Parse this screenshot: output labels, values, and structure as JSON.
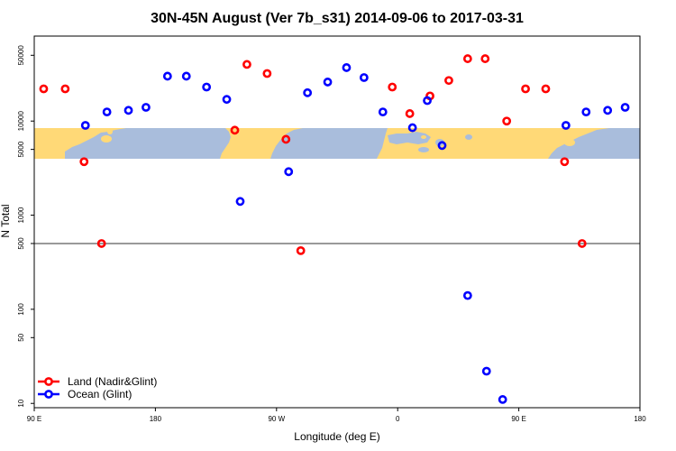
{
  "chart_data": {
    "type": "scatter",
    "title": "30N-45N August (Ver 7b_s31)   2014-09-06 to 2017-03-31",
    "xlabel": "Longitude (deg E)",
    "ylabel": "N Total",
    "x_scale": "linear",
    "y_scale": "log",
    "xlim": [
      90,
      540
    ],
    "ylim": [
      9,
      80000
    ],
    "x_ticks": [
      {
        "value": 90,
        "label": "90 E"
      },
      {
        "value": 180,
        "label": "180"
      },
      {
        "value": 270,
        "label": "90 W"
      },
      {
        "value": 360,
        "label": "0"
      },
      {
        "value": 450,
        "label": "90 E"
      },
      {
        "value": 540,
        "label": "180"
      }
    ],
    "y_ticks": [
      {
        "value": 10,
        "label": "10"
      },
      {
        "value": 50,
        "label": "50"
      },
      {
        "value": 100,
        "label": "100"
      },
      {
        "value": 500,
        "label": "500"
      },
      {
        "value": 1000,
        "label": "1000"
      },
      {
        "value": 5000,
        "label": "5000"
      },
      {
        "value": 10000,
        "label": "10000"
      },
      {
        "value": 50000,
        "label": "50000"
      }
    ],
    "reference_line": {
      "value": 500
    },
    "grid": false,
    "legend_position": "bottom-left",
    "map_band": {
      "latitude_range": "30N-45N",
      "lon_start": 90,
      "lon_end": 540
    },
    "series": [
      {
        "name": "Land (Nadir&Glint)",
        "color": "#ff0000",
        "points": [
          {
            "x": 97,
            "y": 22000
          },
          {
            "x": 113,
            "y": 22000
          },
          {
            "x": 127,
            "y": 3700
          },
          {
            "x": 140,
            "y": 500
          },
          {
            "x": 239,
            "y": 8000
          },
          {
            "x": 248,
            "y": 40000
          },
          {
            "x": 263,
            "y": 32000
          },
          {
            "x": 277,
            "y": 6400
          },
          {
            "x": 288,
            "y": 420
          },
          {
            "x": 356,
            "y": 23000
          },
          {
            "x": 369,
            "y": 12000
          },
          {
            "x": 384,
            "y": 18500
          },
          {
            "x": 398,
            "y": 27000
          },
          {
            "x": 412,
            "y": 46000
          },
          {
            "x": 425,
            "y": 46000
          },
          {
            "x": 441,
            "y": 10000
          },
          {
            "x": 455,
            "y": 22000
          },
          {
            "x": 470,
            "y": 22000
          },
          {
            "x": 484,
            "y": 3700
          },
          {
            "x": 497,
            "y": 500
          }
        ]
      },
      {
        "name": "Ocean (Glint)",
        "color": "#0000ff",
        "points": [
          {
            "x": 128,
            "y": 9000
          },
          {
            "x": 144,
            "y": 12500
          },
          {
            "x": 160,
            "y": 13000
          },
          {
            "x": 173,
            "y": 14000
          },
          {
            "x": 189,
            "y": 30000
          },
          {
            "x": 203,
            "y": 30000
          },
          {
            "x": 218,
            "y": 23000
          },
          {
            "x": 233,
            "y": 17000
          },
          {
            "x": 243,
            "y": 1400
          },
          {
            "x": 279,
            "y": 2900
          },
          {
            "x": 293,
            "y": 20000
          },
          {
            "x": 308,
            "y": 26000
          },
          {
            "x": 322,
            "y": 37000
          },
          {
            "x": 335,
            "y": 29000
          },
          {
            "x": 349,
            "y": 12500
          },
          {
            "x": 371,
            "y": 8500
          },
          {
            "x": 382,
            "y": 16500
          },
          {
            "x": 393,
            "y": 5500
          },
          {
            "x": 412,
            "y": 140
          },
          {
            "x": 426,
            "y": 22
          },
          {
            "x": 438,
            "y": 11
          },
          {
            "x": 485,
            "y": 9000
          },
          {
            "x": 500,
            "y": 12500
          },
          {
            "x": 516,
            "y": 13000
          },
          {
            "x": 529,
            "y": 14000
          }
        ]
      }
    ]
  }
}
